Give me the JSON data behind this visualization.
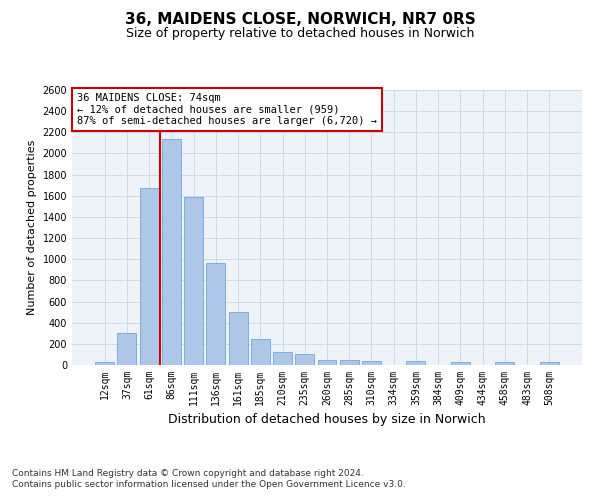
{
  "title1": "36, MAIDENS CLOSE, NORWICH, NR7 0RS",
  "title2": "Size of property relative to detached houses in Norwich",
  "xlabel": "Distribution of detached houses by size in Norwich",
  "ylabel": "Number of detached properties",
  "categories": [
    "12sqm",
    "37sqm",
    "61sqm",
    "86sqm",
    "111sqm",
    "136sqm",
    "161sqm",
    "185sqm",
    "210sqm",
    "235sqm",
    "260sqm",
    "285sqm",
    "310sqm",
    "334sqm",
    "359sqm",
    "384sqm",
    "409sqm",
    "434sqm",
    "458sqm",
    "483sqm",
    "508sqm"
  ],
  "values": [
    25,
    300,
    1670,
    2140,
    1590,
    960,
    500,
    250,
    120,
    100,
    50,
    50,
    35,
    0,
    35,
    0,
    25,
    0,
    25,
    0,
    25
  ],
  "bar_color": "#aec6e8",
  "bar_edge_color": "#6fa8d6",
  "grid_color": "#d0d8e8",
  "background_color": "#eef2f9",
  "vline_x_index": 2.48,
  "vline_color": "#cc0000",
  "annotation_text": "36 MAIDENS CLOSE: 74sqm\n← 12% of detached houses are smaller (959)\n87% of semi-detached houses are larger (6,720) →",
  "annotation_box_color": "#cc0000",
  "ylim": [
    0,
    2600
  ],
  "yticks": [
    0,
    200,
    400,
    600,
    800,
    1000,
    1200,
    1400,
    1600,
    1800,
    2000,
    2200,
    2400,
    2600
  ],
  "footnote1": "Contains HM Land Registry data © Crown copyright and database right 2024.",
  "footnote2": "Contains public sector information licensed under the Open Government Licence v3.0.",
  "title1_fontsize": 11,
  "title2_fontsize": 9,
  "xlabel_fontsize": 9,
  "ylabel_fontsize": 8,
  "tick_fontsize": 7,
  "annotation_fontsize": 7.5,
  "footnote_fontsize": 6.5
}
